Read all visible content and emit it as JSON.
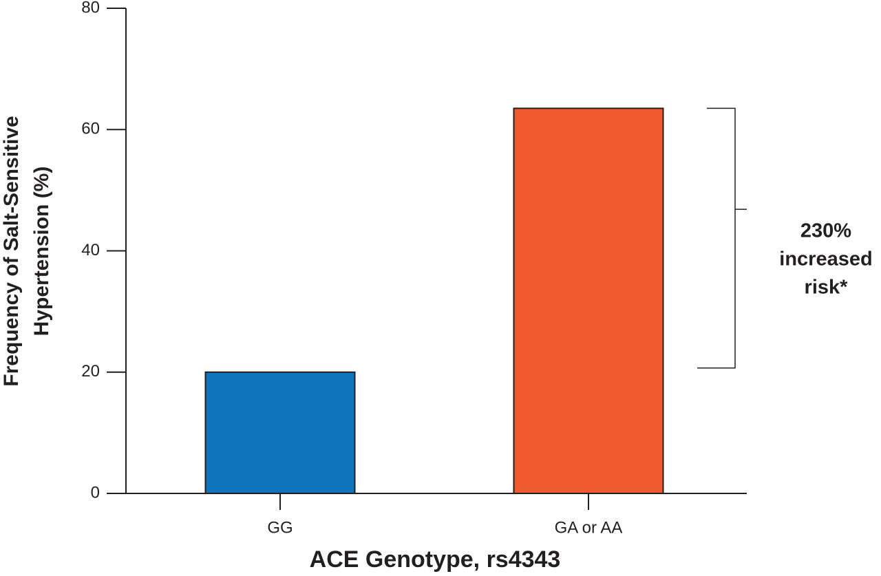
{
  "chart_data": {
    "type": "bar",
    "categories": [
      "GG",
      "GA or AA"
    ],
    "values": [
      20,
      63.5
    ],
    "colors": [
      "#1074bc",
      "#ee5a2b"
    ],
    "ylim": [
      0,
      80
    ],
    "yticks": [
      0,
      20,
      40,
      60,
      80
    ],
    "ylabel": [
      "Frequency of Salt-Sensitive",
      "Hypertension (%)"
    ],
    "xlabel": "ACE Genotype, rs4343",
    "annotation": [
      "230%",
      "increased",
      "risk*"
    ]
  }
}
